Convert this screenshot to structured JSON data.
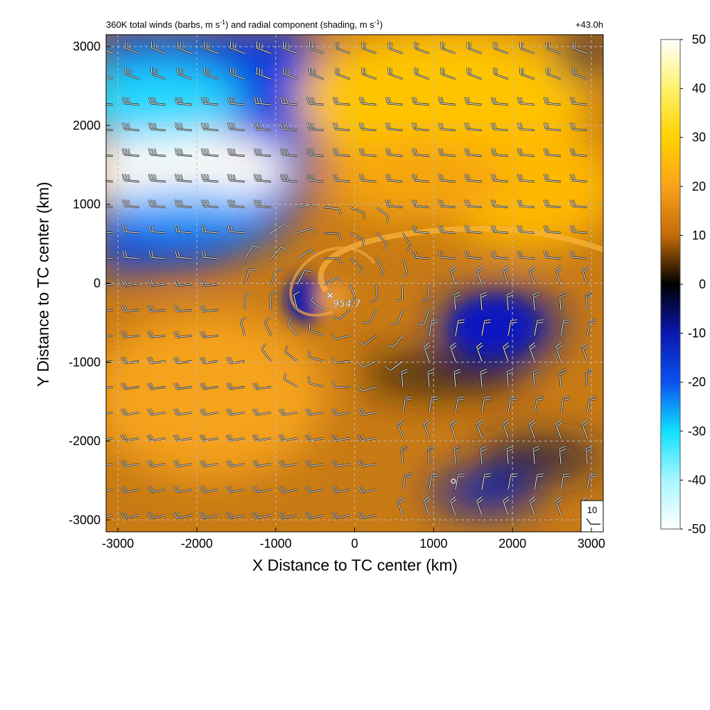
{
  "chart_data": {
    "type": "heatmap",
    "title": "360K total winds (barbs, m s⁻¹) and radial component (shading, m s⁻¹)",
    "title_parts": {
      "a": "360K total winds (barbs, m s",
      "b": "-1",
      "c": ") and radial component (shading, m s",
      "d": "-1",
      "e": ")"
    },
    "forecast_time": "+43.0h",
    "xlabel": "X Distance to TC center (km)",
    "ylabel": "Y Distance to TC center (km)",
    "xlim": [
      -3150,
      3150
    ],
    "ylim": [
      -3150,
      3150
    ],
    "x_ticks": [
      -3000,
      -2000,
      -1000,
      0,
      1000,
      2000,
      3000
    ],
    "y_ticks": [
      -3000,
      -2000,
      -1000,
      0,
      1000,
      2000,
      3000
    ],
    "x_tick_labels": [
      "-3000",
      "-2000",
      "-1000",
      "0",
      "1000",
      "2000",
      "3000"
    ],
    "y_tick_labels": [
      "-3000",
      "-2000",
      "-1000",
      "0",
      "1000",
      "2000",
      "3000"
    ],
    "grid": true,
    "colorbar": {
      "range": [
        -50,
        50
      ],
      "ticks": [
        50,
        40,
        30,
        20,
        10,
        0,
        -10,
        -20,
        -30,
        -40,
        -50
      ],
      "tick_labels": [
        "50",
        "40",
        "30",
        "20",
        "10",
        "0",
        "-10",
        "-20",
        "-30",
        "-40",
        "-50"
      ],
      "colors": [
        "#ffffff",
        "#fff26b",
        "#ffd200",
        "#fca21a",
        "#c36b08",
        "#000000",
        "#0a18b0",
        "#0a52f0",
        "#10e0ff",
        "#a8f6ff",
        "#ffffff"
      ]
    },
    "center_marker": {
      "x": -320,
      "y": -180,
      "label": "954.7"
    },
    "reference_barb": {
      "value": "10",
      "label": "10"
    },
    "shading_regions": [
      {
        "x": -2000,
        "y": 1500,
        "value": -45
      },
      {
        "x": -1400,
        "y": 2600,
        "value": -28
      },
      {
        "x": 1400,
        "y": 2300,
        "value": 28
      },
      {
        "x": 900,
        "y": 1300,
        "value": 22
      },
      {
        "x": -1800,
        "y": -1200,
        "value": 20
      },
      {
        "x": 1800,
        "y": -200,
        "value": -18
      },
      {
        "x": 1500,
        "y": -2800,
        "value": -15
      }
    ]
  }
}
